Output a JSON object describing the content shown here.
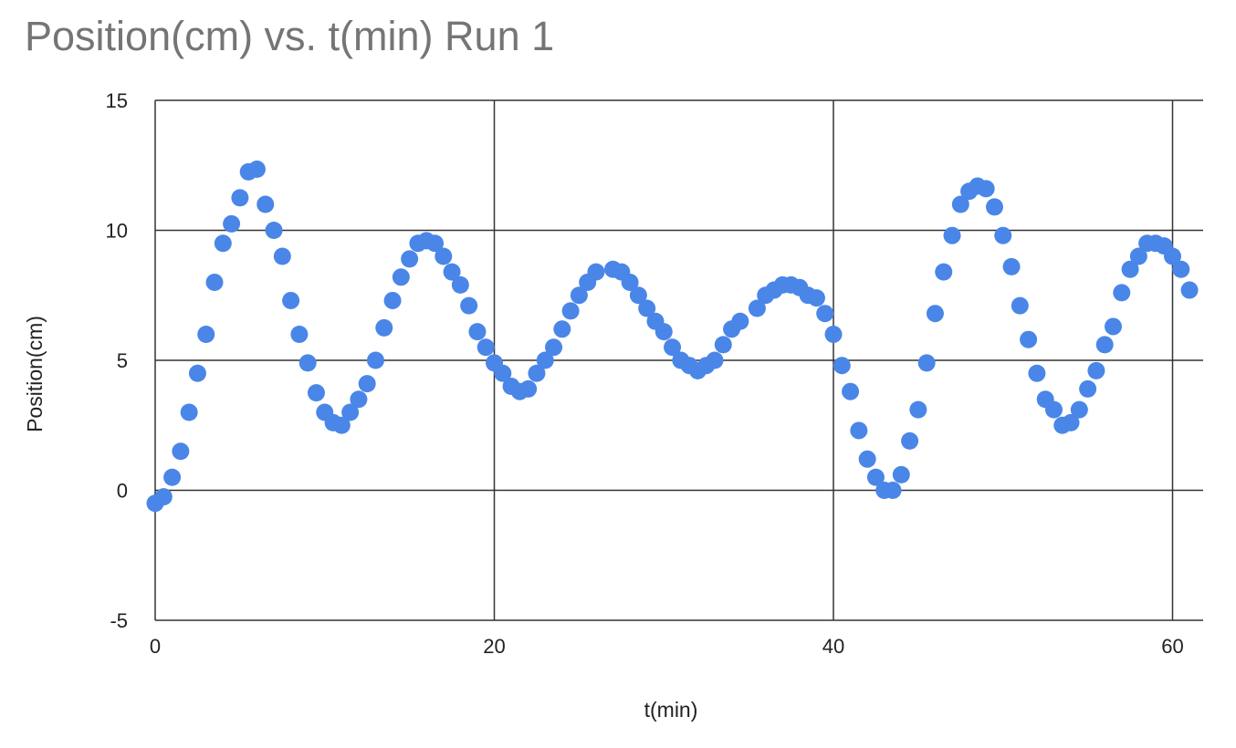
{
  "chart_data": {
    "type": "scatter",
    "title": "Position(cm) vs. t(min) Run 1",
    "xlabel": "t(min)",
    "ylabel": "Position(cm)",
    "xlim": [
      0,
      62
    ],
    "ylim": [
      -5,
      15
    ],
    "x_ticks": [
      "0",
      "20",
      "40",
      "60"
    ],
    "y_ticks": [
      "-5",
      "0",
      "5",
      "10",
      "15"
    ],
    "x_tick_values": [
      0,
      20,
      40,
      60
    ],
    "y_tick_values": [
      -5,
      0,
      5,
      10,
      15
    ],
    "grid": true,
    "legend": "none",
    "marker_color": "#4A86E8",
    "series": [
      {
        "points": [
          [
            0,
            -0.5
          ],
          [
            0.5,
            -0.25
          ],
          [
            1.0,
            0.5
          ],
          [
            1.5,
            1.5
          ],
          [
            2.0,
            3.0
          ],
          [
            2.5,
            4.5
          ],
          [
            3.0,
            6.0
          ],
          [
            3.5,
            8.0
          ],
          [
            4.0,
            9.5
          ],
          [
            4.5,
            10.25
          ],
          [
            5.0,
            11.25
          ],
          [
            5.5,
            12.25
          ],
          [
            6.0,
            12.35
          ],
          [
            6.5,
            11.0
          ],
          [
            7.0,
            10.0
          ],
          [
            7.5,
            9.0
          ],
          [
            8.0,
            7.3
          ],
          [
            8.5,
            6.0
          ],
          [
            9.0,
            4.9
          ],
          [
            9.5,
            3.75
          ],
          [
            10.0,
            3.0
          ],
          [
            10.5,
            2.6
          ],
          [
            11.0,
            2.5
          ],
          [
            11.5,
            3.0
          ],
          [
            12.0,
            3.5
          ],
          [
            12.5,
            4.1
          ],
          [
            13.0,
            5.0
          ],
          [
            13.5,
            6.25
          ],
          [
            14.0,
            7.3
          ],
          [
            14.5,
            8.2
          ],
          [
            15.0,
            8.9
          ],
          [
            15.5,
            9.5
          ],
          [
            16.0,
            9.6
          ],
          [
            16.5,
            9.5
          ],
          [
            17.0,
            9.0
          ],
          [
            17.5,
            8.4
          ],
          [
            18.0,
            7.9
          ],
          [
            18.5,
            7.1
          ],
          [
            19.0,
            6.1
          ],
          [
            19.5,
            5.5
          ],
          [
            20.0,
            4.9
          ],
          [
            20.5,
            4.5
          ],
          [
            21.0,
            4.0
          ],
          [
            21.5,
            3.8
          ],
          [
            22.0,
            3.9
          ],
          [
            22.5,
            4.5
          ],
          [
            23.0,
            5.0
          ],
          [
            23.5,
            5.5
          ],
          [
            24.0,
            6.2
          ],
          [
            24.5,
            6.9
          ],
          [
            25.0,
            7.5
          ],
          [
            25.5,
            8.0
          ],
          [
            26.0,
            8.4
          ],
          [
            27.0,
            8.5
          ],
          [
            27.5,
            8.4
          ],
          [
            28.0,
            8.0
          ],
          [
            28.5,
            7.5
          ],
          [
            29.0,
            7.0
          ],
          [
            29.5,
            6.5
          ],
          [
            30.0,
            6.1
          ],
          [
            30.5,
            5.5
          ],
          [
            31.0,
            5.0
          ],
          [
            31.5,
            4.8
          ],
          [
            32.0,
            4.6
          ],
          [
            32.5,
            4.8
          ],
          [
            33.0,
            5.0
          ],
          [
            33.5,
            5.6
          ],
          [
            34.0,
            6.2
          ],
          [
            34.5,
            6.5
          ],
          [
            35.5,
            7.0
          ],
          [
            36.0,
            7.5
          ],
          [
            36.5,
            7.7
          ],
          [
            37.0,
            7.9
          ],
          [
            37.5,
            7.9
          ],
          [
            38.0,
            7.8
          ],
          [
            38.5,
            7.5
          ],
          [
            39.0,
            7.4
          ],
          [
            39.5,
            6.8
          ],
          [
            40.0,
            6.0
          ],
          [
            40.5,
            4.8
          ],
          [
            41.0,
            3.8
          ],
          [
            41.5,
            2.3
          ],
          [
            42.0,
            1.2
          ],
          [
            42.5,
            0.5
          ],
          [
            43.0,
            0.0
          ],
          [
            43.5,
            0.0
          ],
          [
            44.0,
            0.6
          ],
          [
            44.5,
            1.9
          ],
          [
            45.0,
            3.1
          ],
          [
            45.5,
            4.9
          ],
          [
            46.0,
            6.8
          ],
          [
            46.5,
            8.4
          ],
          [
            47.0,
            9.8
          ],
          [
            47.5,
            11.0
          ],
          [
            48.0,
            11.5
          ],
          [
            48.5,
            11.7
          ],
          [
            49.0,
            11.6
          ],
          [
            49.5,
            10.9
          ],
          [
            50.0,
            9.8
          ],
          [
            50.5,
            8.6
          ],
          [
            51.0,
            7.1
          ],
          [
            51.5,
            5.8
          ],
          [
            52.0,
            4.5
          ],
          [
            52.5,
            3.5
          ],
          [
            53.0,
            3.1
          ],
          [
            53.5,
            2.5
          ],
          [
            54.0,
            2.6
          ],
          [
            54.5,
            3.1
          ],
          [
            55.0,
            3.9
          ],
          [
            55.5,
            4.6
          ],
          [
            56.0,
            5.6
          ],
          [
            56.5,
            6.3
          ],
          [
            57.0,
            7.6
          ],
          [
            57.5,
            8.5
          ],
          [
            58.0,
            9.0
          ],
          [
            58.5,
            9.5
          ],
          [
            59.0,
            9.5
          ],
          [
            59.5,
            9.4
          ],
          [
            60.0,
            9.0
          ],
          [
            60.5,
            8.5
          ],
          [
            61.0,
            7.7
          ]
        ]
      }
    ]
  }
}
